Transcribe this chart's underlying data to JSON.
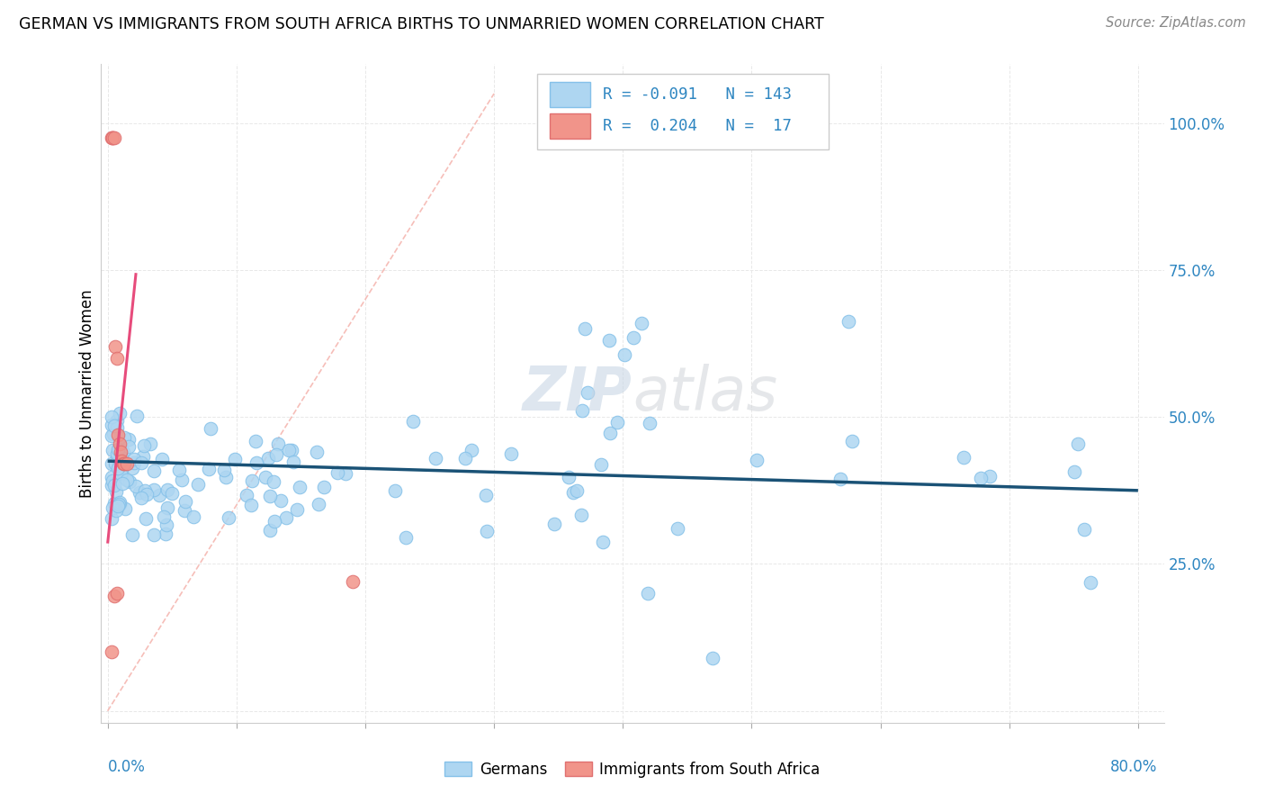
{
  "title": "GERMAN VS IMMIGRANTS FROM SOUTH AFRICA BIRTHS TO UNMARRIED WOMEN CORRELATION CHART",
  "source": "Source: ZipAtlas.com",
  "ylabel": "Births to Unmarried Women",
  "xlim": [
    0.0,
    0.8
  ],
  "ylim": [
    0.0,
    1.05
  ],
  "blue_scatter_color": "#AED6F1",
  "blue_edge_color": "#85C1E9",
  "pink_scatter_color": "#F1948A",
  "pink_edge_color": "#E88080",
  "blue_line_color": "#1A5276",
  "pink_line_color": "#E74C7C",
  "diag_color": "#FADBD8",
  "legend_text_color": "#2E86C1",
  "watermark": "ZIPatlas",
  "watermark_color": "#D5D8DC",
  "grid_color": "#E8E8E8",
  "right_tick_color": "#2E86C1",
  "xlabel_color": "#2E86C1"
}
